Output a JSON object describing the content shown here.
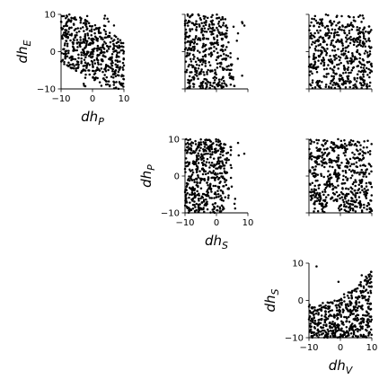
{
  "chart_data": [
    {
      "id": "p_vs_e",
      "type": "scatter",
      "xlabel": "dh",
      "xlabel_sub": "P",
      "ylabel": "dh",
      "ylabel_sub": "E",
      "xlim": [
        -10,
        10
      ],
      "ylim": [
        -10,
        10
      ],
      "xticks": [
        "−10",
        "0",
        "10"
      ],
      "yticks": [
        "−10",
        "0",
        "10"
      ],
      "show_xticklabels": true,
      "show_yticklabels": true,
      "grid": false,
      "legend": "none",
      "trend": "negative",
      "n_points": 520,
      "seed": 11
    },
    {
      "id": "s_vs_e",
      "type": "scatter",
      "xlabel": "",
      "xlabel_sub": "",
      "ylabel": "",
      "ylabel_sub": "",
      "xlim": [
        -10,
        10
      ],
      "ylim": [
        -10,
        10
      ],
      "xticks": [
        "",
        "",
        ""
      ],
      "yticks": [
        "",
        "",
        ""
      ],
      "show_xticklabels": false,
      "show_yticklabels": false,
      "grid": false,
      "legend": "none",
      "trend": "positive-left",
      "n_points": 420,
      "seed": 23
    },
    {
      "id": "v_vs_e",
      "type": "scatter",
      "xlabel": "",
      "xlabel_sub": "",
      "ylabel": "",
      "ylabel_sub": "",
      "xlim": [
        -10,
        10
      ],
      "ylim": [
        -10,
        10
      ],
      "xticks": [
        "",
        "",
        ""
      ],
      "yticks": [
        "",
        "",
        ""
      ],
      "show_xticklabels": false,
      "show_yticklabels": false,
      "grid": false,
      "legend": "none",
      "trend": "uniform-upper",
      "n_points": 520,
      "seed": 37
    },
    {
      "id": "s_vs_p",
      "type": "scatter",
      "xlabel": "dh",
      "xlabel_sub": "S",
      "ylabel": "dh",
      "ylabel_sub": "P",
      "xlim": [
        -10,
        10
      ],
      "ylim": [
        -10,
        10
      ],
      "xticks": [
        "−10",
        "0",
        "10"
      ],
      "yticks": [
        "−10",
        "0",
        "10"
      ],
      "show_xticklabels": true,
      "show_yticklabels": true,
      "grid": false,
      "legend": "none",
      "trend": "left-concentrated",
      "n_points": 500,
      "seed": 41
    },
    {
      "id": "v_vs_p",
      "type": "scatter",
      "xlabel": "",
      "xlabel_sub": "",
      "ylabel": "",
      "ylabel_sub": "",
      "xlim": [
        -10,
        10
      ],
      "ylim": [
        -10,
        10
      ],
      "xticks": [
        "",
        "",
        ""
      ],
      "yticks": [
        "",
        "",
        ""
      ],
      "show_xticklabels": false,
      "show_yticklabels": false,
      "grid": false,
      "legend": "none",
      "trend": "uniform",
      "n_points": 540,
      "seed": 53
    },
    {
      "id": "v_vs_s",
      "type": "scatter",
      "xlabel": "dh",
      "xlabel_sub": "V",
      "ylabel": "dh",
      "ylabel_sub": "S",
      "xlim": [
        -10,
        10
      ],
      "ylim": [
        -10,
        10
      ],
      "xticks": [
        "−10",
        "0",
        "10"
      ],
      "yticks": [
        "−10",
        "0",
        "10"
      ],
      "show_xticklabels": true,
      "show_yticklabels": true,
      "grid": false,
      "legend": "none",
      "trend": "positive-lower",
      "n_points": 500,
      "seed": 67
    }
  ]
}
